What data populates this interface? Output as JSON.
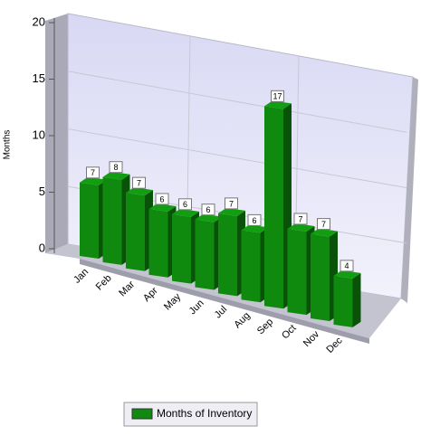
{
  "chart_data": {
    "type": "bar3d",
    "y_label": "Months",
    "categories": [
      "Jan",
      "Feb",
      "Mar",
      "Apr",
      "May",
      "Jun",
      "Jul",
      "Aug",
      "Sep",
      "Oct",
      "Nov",
      "Dec"
    ],
    "series": [
      {
        "name": "Months of Inventory",
        "color": "#0f8a0f",
        "values": [
          7,
          8,
          7,
          6,
          6,
          6,
          7,
          6,
          17,
          7,
          7,
          4
        ]
      }
    ],
    "ylim": [
      0,
      20
    ],
    "yticks": [
      0,
      5,
      10,
      15,
      20
    ],
    "grid": true,
    "legend": "bottom"
  }
}
